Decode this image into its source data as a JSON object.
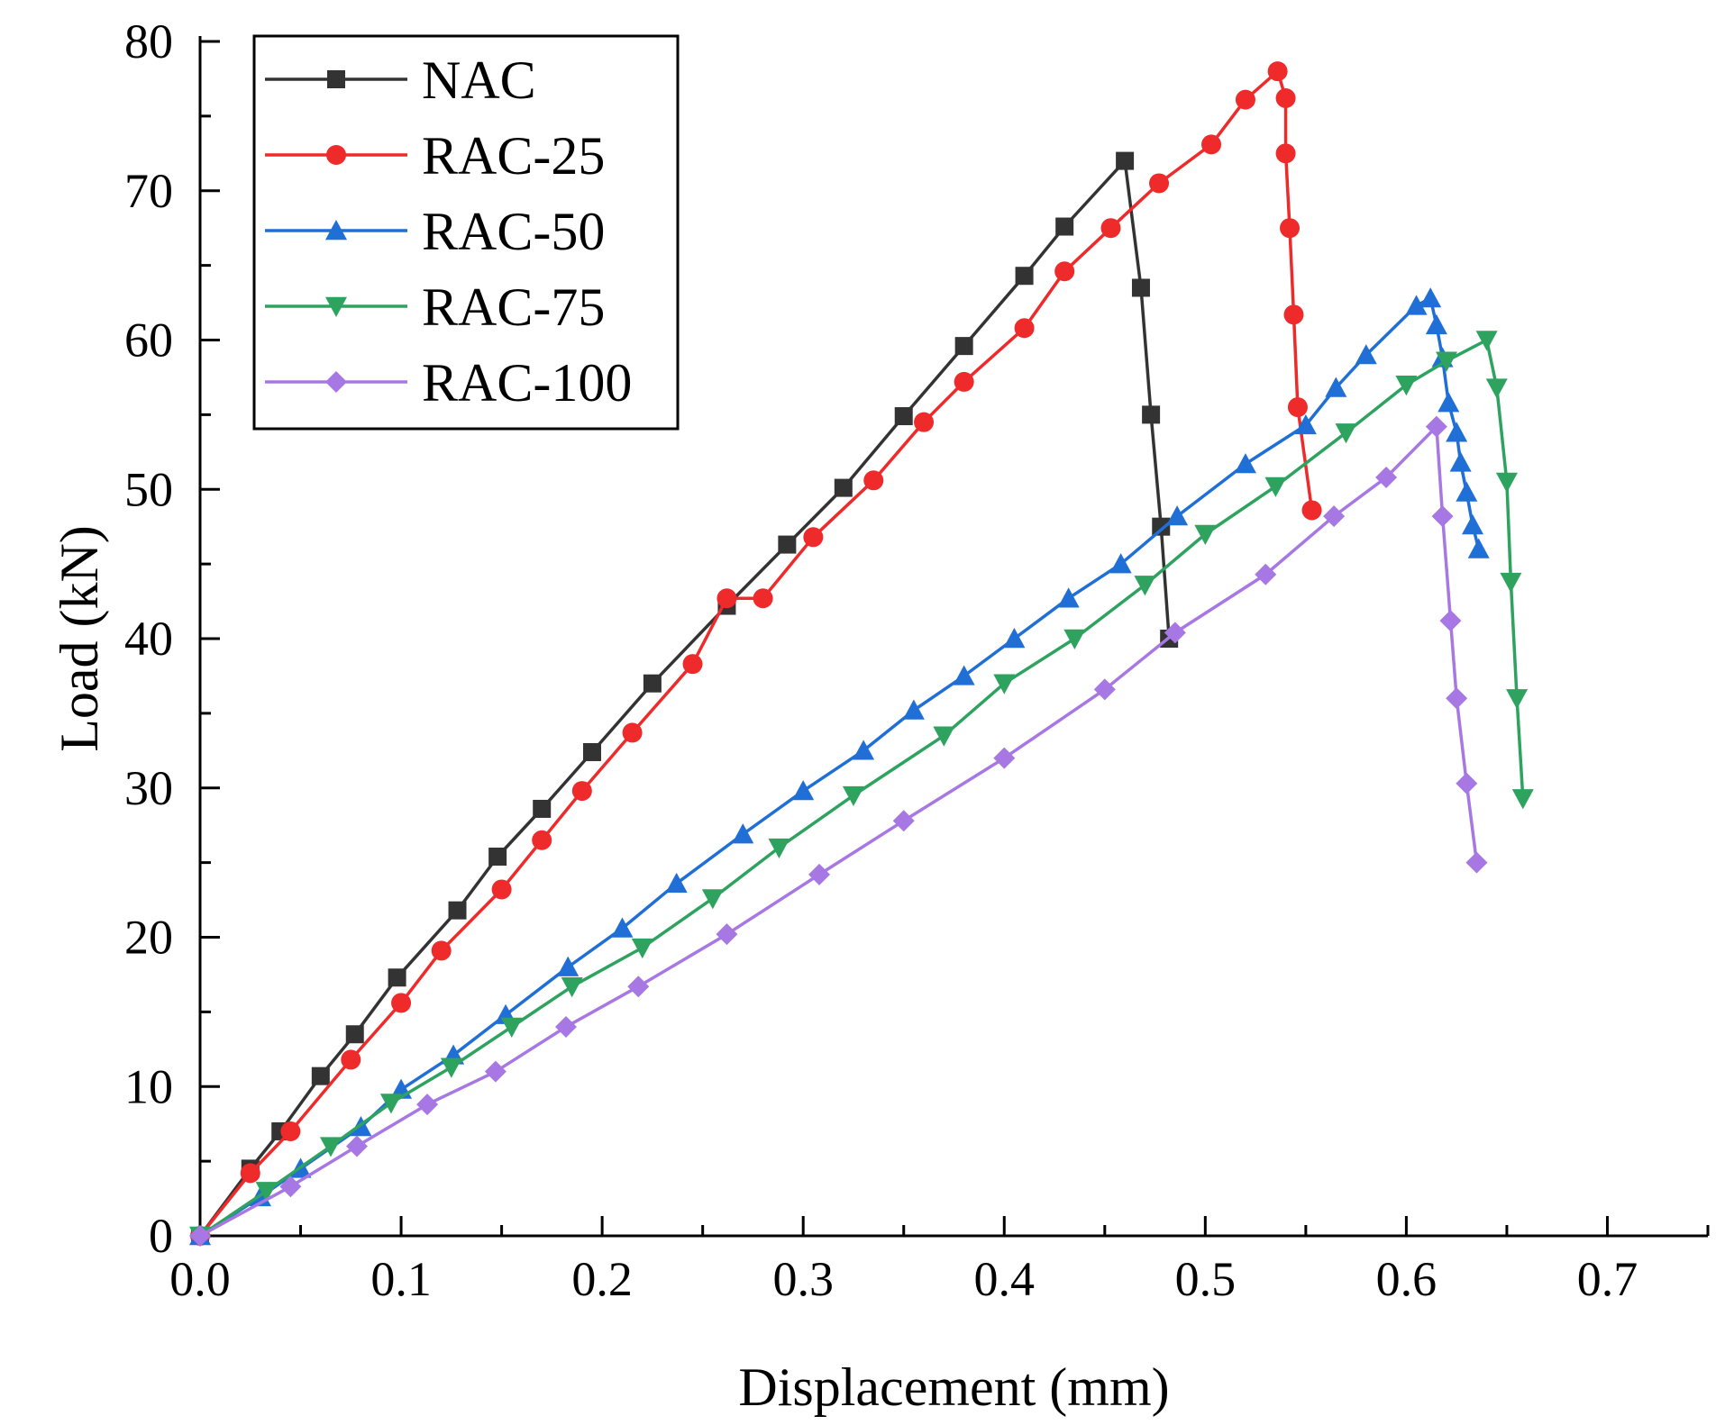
{
  "chart_data": {
    "type": "line",
    "title": "",
    "xlabel": "Displacement (mm)",
    "ylabel": "Load (kN)",
    "xlim": [
      0,
      0.75
    ],
    "ylim": [
      0,
      80
    ],
    "xticks": [
      "0.0",
      "0.1",
      "0.2",
      "0.3",
      "0.4",
      "0.5",
      "0.6",
      "0.7"
    ],
    "yticks": [
      "0",
      "10",
      "20",
      "30",
      "40",
      "50",
      "60",
      "70",
      "80"
    ],
    "legend_position": "top-left",
    "grid": false,
    "series": [
      {
        "name": "NAC",
        "color": "#333333",
        "marker": "square",
        "x": [
          0,
          0.025,
          0.04,
          0.06,
          0.077,
          0.098,
          0.128,
          0.148,
          0.17,
          0.195,
          0.225,
          0.262,
          0.292,
          0.32,
          0.35,
          0.38,
          0.41,
          0.43,
          0.46,
          0.468,
          0.473,
          0.478,
          0.482
        ],
        "y": [
          0,
          4.5,
          7.0,
          10.7,
          13.5,
          17.3,
          21.8,
          25.4,
          28.6,
          32.4,
          37.0,
          42.2,
          46.3,
          50.1,
          54.9,
          59.6,
          64.3,
          67.6,
          72.0,
          63.5,
          55.0,
          47.5,
          40.0
        ]
      },
      {
        "name": "RAC-25",
        "color": "#ee2a2a",
        "marker": "circle",
        "x": [
          0,
          0.025,
          0.045,
          0.075,
          0.1,
          0.12,
          0.15,
          0.17,
          0.19,
          0.215,
          0.245,
          0.262,
          0.28,
          0.305,
          0.335,
          0.36,
          0.38,
          0.41,
          0.43,
          0.453,
          0.477,
          0.503,
          0.52,
          0.536,
          0.54,
          0.54,
          0.542,
          0.544,
          0.546,
          0.553
        ],
        "y": [
          0,
          4.2,
          7.0,
          11.8,
          15.6,
          19.1,
          23.2,
          26.5,
          29.8,
          33.7,
          38.3,
          42.7,
          42.7,
          46.8,
          50.6,
          54.5,
          57.2,
          60.8,
          64.6,
          67.5,
          70.5,
          73.1,
          76.1,
          78.0,
          76.2,
          72.5,
          67.5,
          61.7,
          55.5,
          48.6
        ]
      },
      {
        "name": "RAC-50",
        "color": "#1f6fd6",
        "marker": "triangle-up",
        "x": [
          0,
          0.03,
          0.05,
          0.08,
          0.1,
          0.126,
          0.152,
          0.183,
          0.21,
          0.237,
          0.27,
          0.3,
          0.33,
          0.355,
          0.38,
          0.405,
          0.432,
          0.458,
          0.486,
          0.52,
          0.55,
          0.565,
          0.58,
          0.605,
          0.612,
          0.615,
          0.618,
          0.621,
          0.625,
          0.627,
          0.63,
          0.633,
          0.636
        ],
        "y": [
          0,
          2.6,
          4.5,
          7.3,
          9.8,
          12.1,
          14.8,
          18.0,
          20.6,
          23.6,
          26.9,
          29.8,
          32.5,
          35.2,
          37.5,
          40.0,
          42.7,
          45.0,
          48.2,
          51.7,
          54.3,
          56.8,
          59.0,
          62.3,
          62.8,
          61.0,
          58.8,
          55.8,
          53.8,
          51.8,
          49.8,
          47.6,
          46.0
        ]
      },
      {
        "name": "RAC-75",
        "color": "#2ea35f",
        "marker": "triangle-down",
        "x": [
          0,
          0.033,
          0.065,
          0.095,
          0.125,
          0.155,
          0.185,
          0.22,
          0.255,
          0.288,
          0.325,
          0.37,
          0.4,
          0.435,
          0.47,
          0.5,
          0.535,
          0.57,
          0.6,
          0.62,
          0.64,
          0.645,
          0.65,
          0.652,
          0.655,
          0.658
        ],
        "y": [
          0,
          3.0,
          6.0,
          8.9,
          11.3,
          14.0,
          16.7,
          19.3,
          22.6,
          26.0,
          29.5,
          33.5,
          37.0,
          40.0,
          43.6,
          47.0,
          50.2,
          53.8,
          57.0,
          58.6,
          60.0,
          56.8,
          50.5,
          43.8,
          36.0,
          29.3
        ]
      },
      {
        "name": "RAC-100",
        "color": "#a778e3",
        "marker": "diamond",
        "x": [
          0,
          0.045,
          0.078,
          0.113,
          0.147,
          0.182,
          0.218,
          0.262,
          0.308,
          0.35,
          0.4,
          0.45,
          0.485,
          0.53,
          0.564,
          0.59,
          0.615,
          0.618,
          0.622,
          0.625,
          0.63,
          0.635
        ],
        "y": [
          0,
          3.3,
          6.0,
          8.8,
          11.0,
          14.0,
          16.7,
          20.2,
          24.2,
          27.8,
          32.0,
          36.6,
          40.4,
          44.3,
          48.2,
          50.8,
          54.2,
          48.2,
          41.2,
          36.0,
          30.3,
          25.0
        ]
      }
    ]
  }
}
